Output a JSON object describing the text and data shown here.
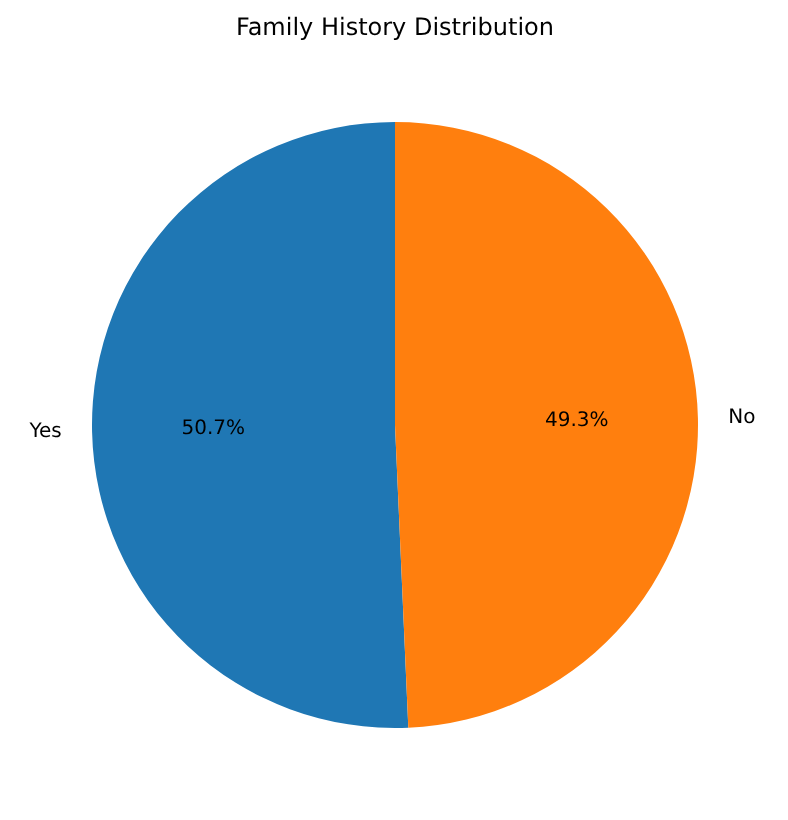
{
  "chart_data": {
    "type": "pie",
    "title": "Family History Distribution",
    "categories": [
      "Yes",
      "No"
    ],
    "values": [
      50.7,
      49.3
    ],
    "value_labels": [
      "50.7%",
      "49.3%"
    ],
    "colors": [
      "#1f77b4",
      "#ff7f0e"
    ]
  }
}
